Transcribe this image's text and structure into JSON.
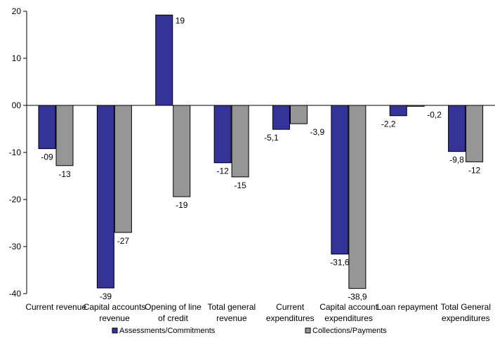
{
  "chart_data": {
    "type": "bar",
    "categories": [
      [
        "Current revenue"
      ],
      [
        "Capital accounts",
        "revenue"
      ],
      [
        "Opening of line",
        "of credit"
      ],
      [
        "Total general",
        "revenue"
      ],
      [
        "Current",
        "expenditures"
      ],
      [
        "Capital account",
        "expenditures"
      ],
      [
        "Loan repayment"
      ],
      [
        "Total General",
        "expenditures"
      ]
    ],
    "series": [
      {
        "name": "Assessments/Commitments",
        "color": "#333399",
        "values": [
          -9.2,
          -38.8,
          19.2,
          -12.2,
          -5.1,
          -31.6,
          -2.2,
          -9.8
        ],
        "labels": [
          "-09",
          "-39",
          "19",
          "-12",
          "-5,1",
          "-31,6",
          "-2,2",
          "-9,8"
        ]
      },
      {
        "name": "Collections/Payments",
        "color": "#969696",
        "values": [
          -12.8,
          -27,
          -19.4,
          -15.2,
          -3.9,
          -38.9,
          -0.2,
          -12
        ],
        "labels": [
          "-13",
          "-27",
          "-19",
          "-15",
          "-3,9",
          "-38,9",
          "-0,2",
          "-12"
        ]
      }
    ],
    "ylim": [
      -40,
      20
    ],
    "yticks": [
      20,
      10,
      0,
      -10,
      -20,
      -30,
      -40
    ],
    "ytick_labels": [
      "20",
      "10",
      "00",
      "-10",
      "-20",
      "-30",
      "-40"
    ],
    "grid": false,
    "legend": "bottom"
  }
}
